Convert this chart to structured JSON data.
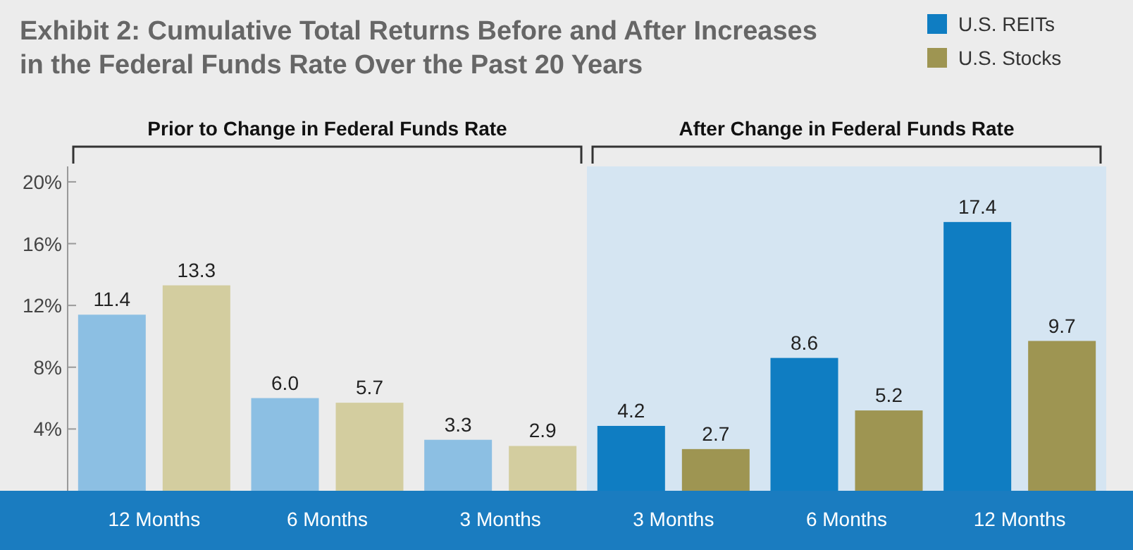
{
  "chart_data": {
    "type": "bar",
    "title": "Exhibit 2: Cumulative Total Returns Before and After Increases in the Federal Funds Rate Over the Past 20 Years",
    "categories": [
      "12 Months",
      "6 Months",
      "3 Months",
      "3 Months",
      "6 Months",
      "12 Months"
    ],
    "series": [
      {
        "name": "U.S. REITs",
        "color": "#0f7dc2",
        "colors": [
          "#8cbfe3",
          "#8cbfe3",
          "#8cbfe3",
          "#0f7dc2",
          "#0f7dc2",
          "#0f7dc2"
        ],
        "values": [
          11.4,
          6.0,
          3.3,
          4.2,
          8.6,
          17.4
        ],
        "value_labels": [
          "11.4",
          "6.0",
          "3.3",
          "4.2",
          "8.6",
          "17.4"
        ]
      },
      {
        "name": "U.S. Stocks",
        "color": "#9e9552",
        "colors": [
          "#d3cd9f",
          "#d3cd9f",
          "#d3cd9f",
          "#9e9552",
          "#9e9552",
          "#9e9552"
        ],
        "values": [
          13.3,
          5.7,
          2.9,
          2.7,
          5.2,
          9.7
        ],
        "value_labels": [
          "13.3",
          "5.7",
          "2.9",
          "2.7",
          "5.2",
          "9.7"
        ]
      }
    ],
    "ylim": [
      0,
      21
    ],
    "yticks": [
      {
        "value": 4,
        "label": "4%"
      },
      {
        "value": 8,
        "label": "8%"
      },
      {
        "value": 12,
        "label": "12%"
      },
      {
        "value": 16,
        "label": "16%"
      },
      {
        "value": 20,
        "label": "20%"
      }
    ],
    "annotations": [
      "Prior to Change in Federal Funds Rate",
      "After Change in Federal Funds Rate"
    ],
    "legend": "top right"
  }
}
